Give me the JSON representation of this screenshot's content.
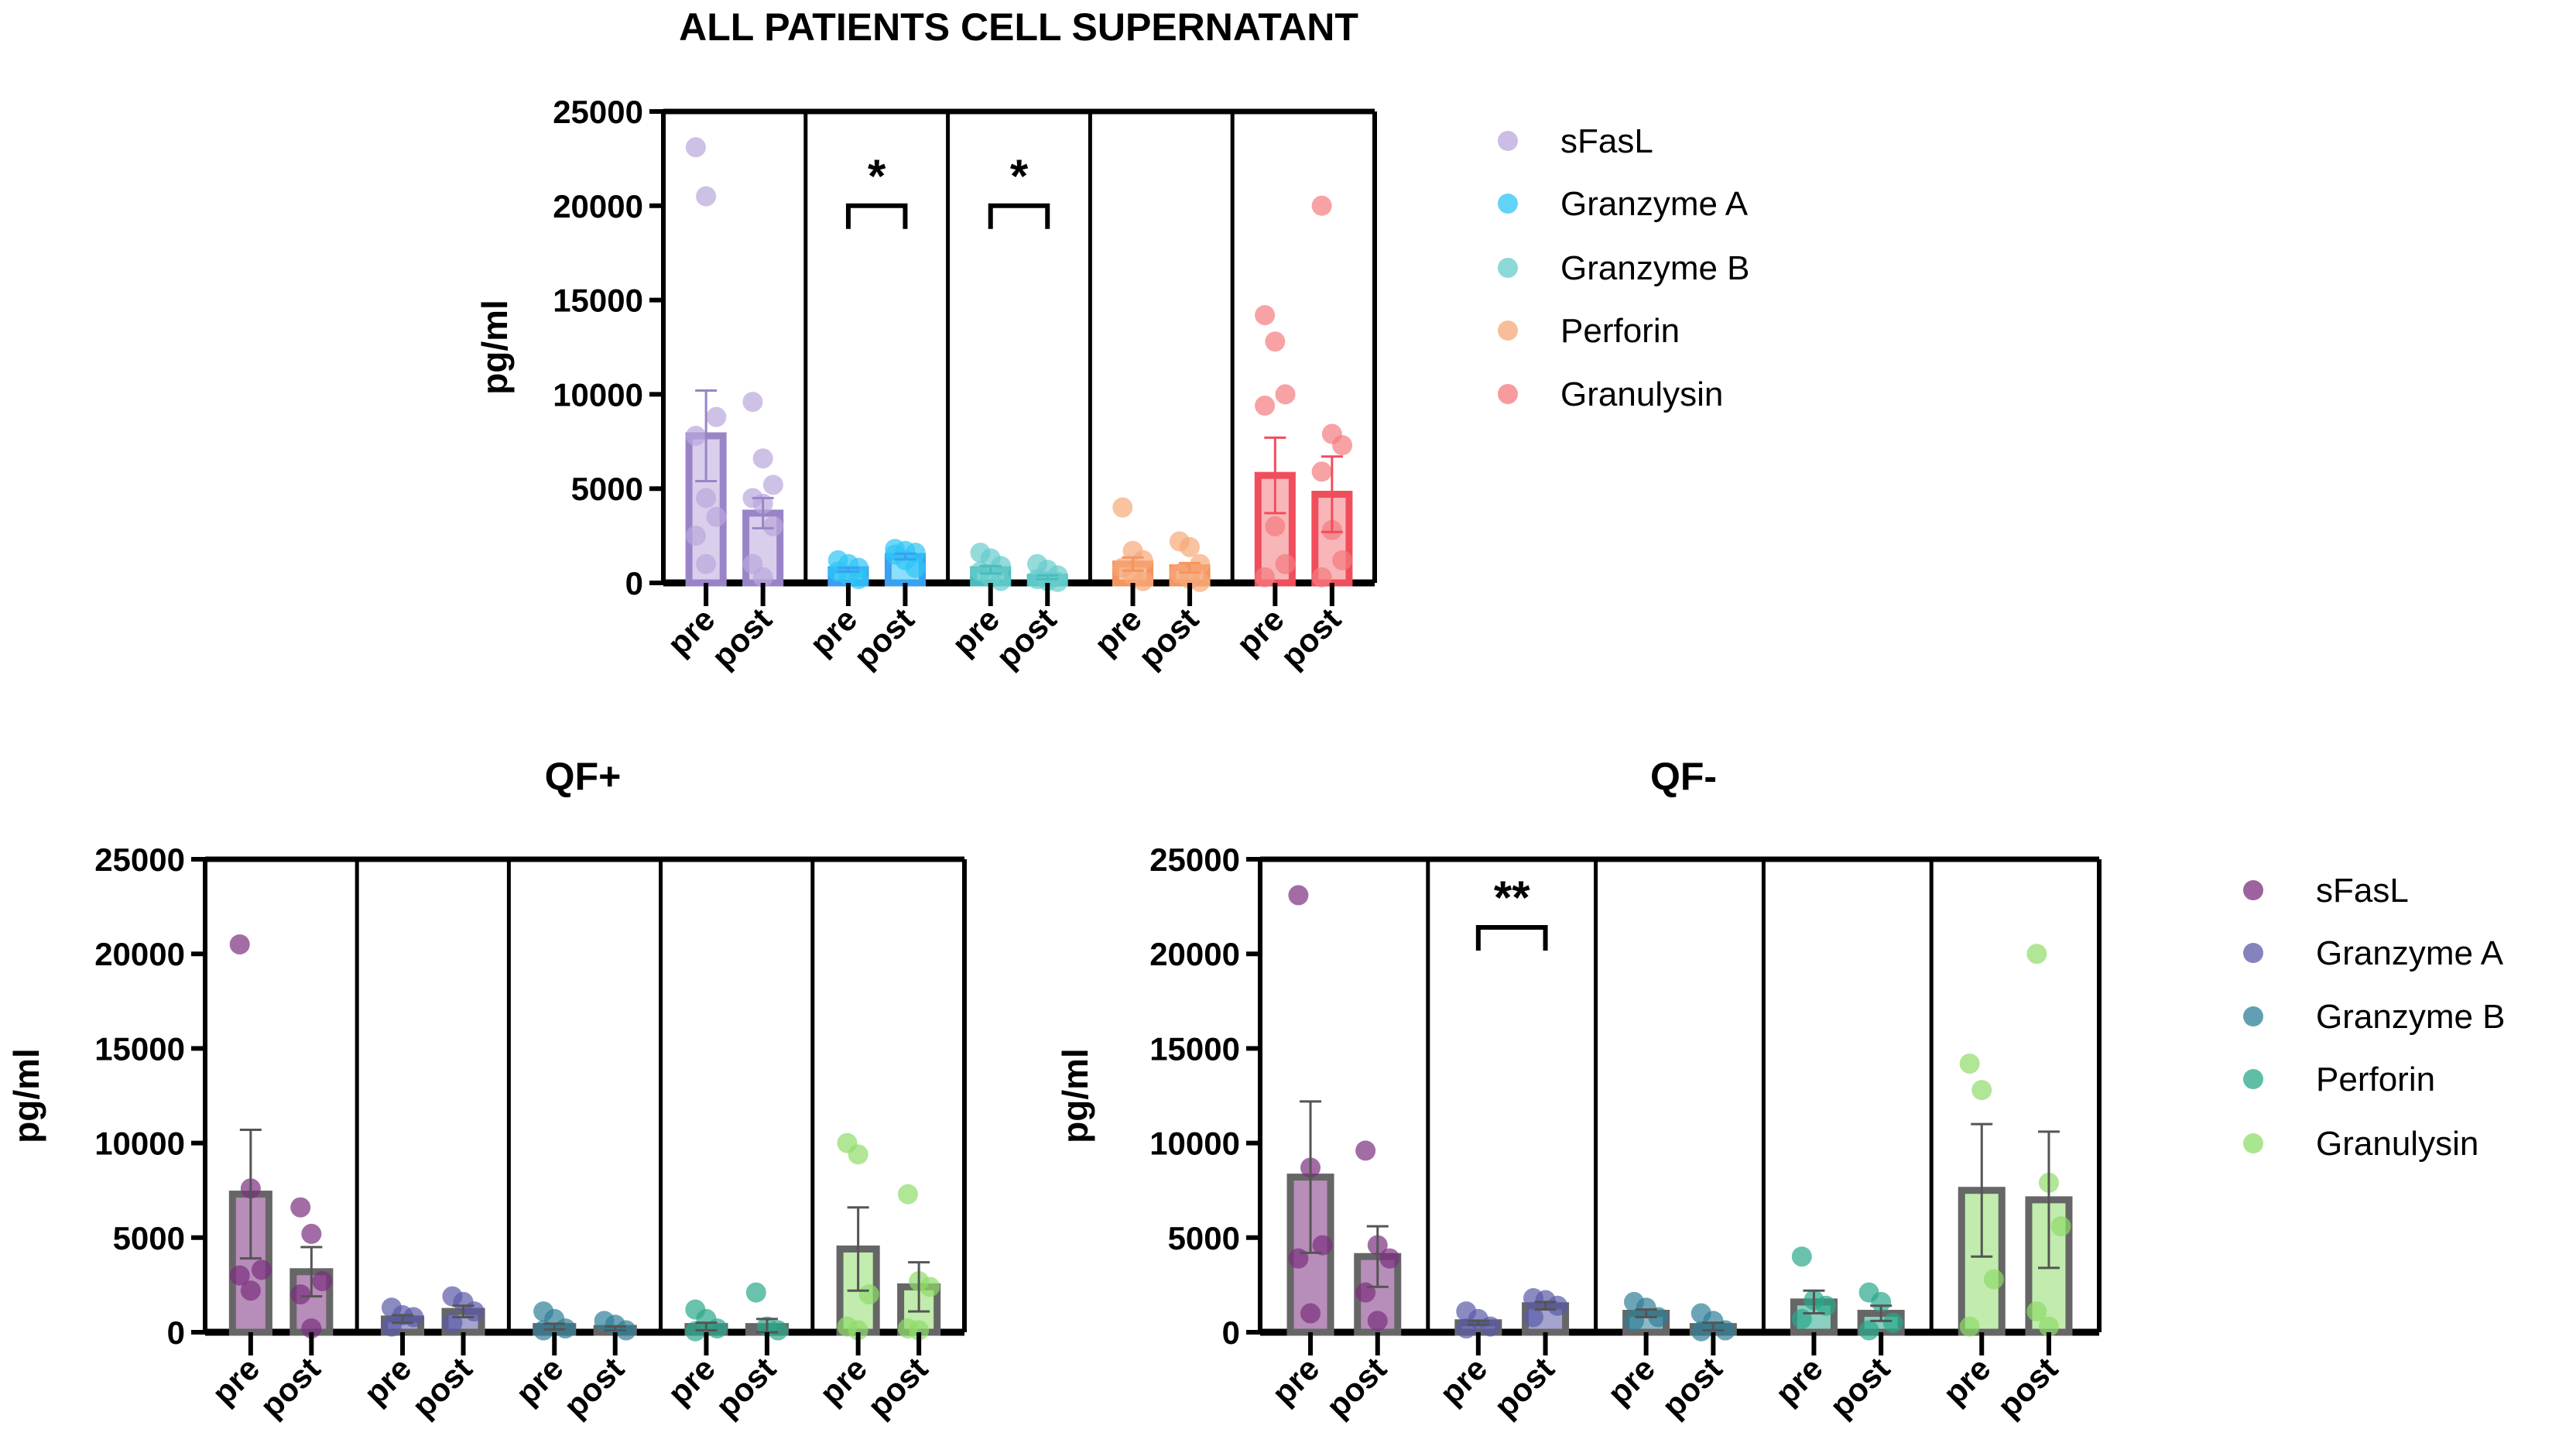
{
  "legend_top": [
    "sFasL",
    "Granzyme A",
    "Granzyme B",
    "Perforin",
    "Granulysin"
  ],
  "legend_bottom": [
    "sFasL",
    "Granzyme A",
    "Granzyme B",
    "Perforin",
    "Granulysin"
  ],
  "chart_data": [
    {
      "id": "all",
      "type": "bar",
      "title": "ALL PATIENTS CELL SUPERNATANT",
      "ylabel": "pg/ml",
      "ylim": [
        0,
        25000
      ],
      "yticks": [
        "0",
        "5000",
        "10000",
        "15000",
        "20000",
        "25000"
      ],
      "tick_labels": [
        "pre",
        "post"
      ],
      "legend": "right",
      "groups": [
        {
          "name": "sFasL",
          "color": "#b9a7dc",
          "stroke": "#9a84c8",
          "pre": {
            "mean": 7800,
            "sem": 2400,
            "points": [
              23100,
              20500,
              8800,
              7800,
              4500,
              3500,
              2500,
              1000
            ]
          },
          "post": {
            "mean": 3700,
            "sem": 800,
            "points": [
              9600,
              6600,
              5200,
              4500,
              4200,
              3000,
              1000,
              300
            ]
          }
        },
        {
          "name": "Granzyme A",
          "color": "#2ec5f5",
          "stroke": "#3aa0f0",
          "pre": {
            "mean": 700,
            "sem": 100,
            "points": [
              1200,
              1000,
              800,
              600,
              400,
              200
            ]
          },
          "post": {
            "mean": 1400,
            "sem": 150,
            "points": [
              1800,
              1700,
              1600,
              1500,
              1200,
              800
            ]
          },
          "significance": "*"
        },
        {
          "name": "Granzyme B",
          "color": "#66cccc",
          "stroke": "#4bbcbc",
          "pre": {
            "mean": 700,
            "sem": 200,
            "points": [
              1600,
              1300,
              900,
              600,
              300,
              100
            ]
          },
          "post": {
            "mean": 300,
            "sem": 100,
            "points": [
              1000,
              700,
              400,
              200,
              100,
              50
            ]
          },
          "significance": "*"
        },
        {
          "name": "Perforin",
          "color": "#f6a878",
          "stroke": "#f39560",
          "pre": {
            "mean": 1000,
            "sem": 350,
            "points": [
              4000,
              1700,
              1200,
              800,
              400,
              100
            ]
          },
          "post": {
            "mean": 800,
            "sem": 250,
            "points": [
              2200,
              1900,
              1000,
              500,
              200,
              50
            ]
          }
        },
        {
          "name": "Granulysin",
          "color": "#f47a7f",
          "stroke": "#f04e5c",
          "pre": {
            "mean": 5700,
            "sem": 2000,
            "points": [
              14200,
              12800,
              10000,
              9400,
              3000,
              1000,
              300
            ]
          },
          "post": {
            "mean": 4700,
            "sem": 2000,
            "points": [
              20000,
              7900,
              7300,
              5900,
              2800,
              1200,
              300
            ]
          }
        }
      ]
    },
    {
      "id": "qfpos",
      "type": "bar",
      "title": "QF+",
      "ylabel": "pg/ml",
      "ylim": [
        0,
        25000
      ],
      "yticks": [
        "0",
        "5000",
        "10000",
        "15000",
        "20000",
        "25000"
      ],
      "tick_labels": [
        "pre",
        "post"
      ],
      "groups": [
        {
          "name": "sFasL",
          "color": "#7b2f7f",
          "stroke": "#666666",
          "pre": {
            "mean": 7300,
            "sem": 3400,
            "points": [
              20500,
              7600,
              3300,
              3000,
              2200
            ]
          },
          "post": {
            "mean": 3200,
            "sem": 1300,
            "points": [
              6600,
              5200,
              2700,
              2000,
              200
            ]
          }
        },
        {
          "name": "Granzyme A",
          "color": "#5a5aa8",
          "stroke": "#666666",
          "pre": {
            "mean": 700,
            "sem": 200,
            "points": [
              1300,
              900,
              800,
              300
            ]
          },
          "post": {
            "mean": 1100,
            "sem": 300,
            "points": [
              1900,
              1600,
              1100,
              500
            ]
          }
        },
        {
          "name": "Granzyme B",
          "color": "#2f7f99",
          "stroke": "#666666",
          "pre": {
            "mean": 300,
            "sem": 150,
            "points": [
              1100,
              700,
              200,
              100
            ]
          },
          "post": {
            "mean": 200,
            "sem": 100,
            "points": [
              600,
              400,
              100
            ]
          }
        },
        {
          "name": "Perforin",
          "color": "#2aa88a",
          "stroke": "#666666",
          "pre": {
            "mean": 300,
            "sem": 200,
            "points": [
              1200,
              700,
              200,
              50
            ]
          },
          "post": {
            "mean": 300,
            "sem": 400,
            "points": [
              2100,
              300,
              100
            ]
          }
        },
        {
          "name": "Granulysin",
          "color": "#8edc6a",
          "stroke": "#666666",
          "pre": {
            "mean": 4400,
            "sem": 2200,
            "points": [
              10000,
              9400,
              2000,
              300,
              100
            ]
          },
          "post": {
            "mean": 2400,
            "sem": 1300,
            "points": [
              7300,
              2700,
              2400,
              200,
              100
            ]
          }
        }
      ]
    },
    {
      "id": "qfneg",
      "type": "bar",
      "title": "QF-",
      "ylabel": "pg/ml",
      "ylim": [
        0,
        25000
      ],
      "yticks": [
        "0",
        "5000",
        "10000",
        "15000",
        "20000",
        "25000"
      ],
      "tick_labels": [
        "pre",
        "post"
      ],
      "legend": "right",
      "groups": [
        {
          "name": "sFasL",
          "color": "#7b2f7f",
          "stroke": "#666666",
          "pre": {
            "mean": 8200,
            "sem": 4000,
            "points": [
              23100,
              8700,
              4600,
              3900,
              1000
            ]
          },
          "post": {
            "mean": 4000,
            "sem": 1600,
            "points": [
              9600,
              4600,
              3900,
              2100,
              600
            ]
          }
        },
        {
          "name": "Granzyme A",
          "color": "#5a5aa8",
          "stroke": "#666666",
          "pre": {
            "mean": 500,
            "sem": 100,
            "points": [
              1100,
              700,
              300,
              200
            ]
          },
          "post": {
            "mean": 1400,
            "sem": 200,
            "points": [
              1800,
              1700,
              1400,
              800
            ]
          },
          "significance": "**"
        },
        {
          "name": "Granzyme B",
          "color": "#2f7f99",
          "stroke": "#666666",
          "pre": {
            "mean": 1000,
            "sem": 200,
            "points": [
              1600,
              1300,
              800,
              600
            ]
          },
          "post": {
            "mean": 300,
            "sem": 200,
            "points": [
              1000,
              600,
              100,
              50
            ]
          }
        },
        {
          "name": "Perforin",
          "color": "#2aa88a",
          "stroke": "#666666",
          "pre": {
            "mean": 1600,
            "sem": 600,
            "points": [
              4000,
              1700,
              1400,
              700
            ]
          },
          "post": {
            "mean": 1000,
            "sem": 400,
            "points": [
              2100,
              1600,
              500,
              100
            ]
          }
        },
        {
          "name": "Granulysin",
          "color": "#8edc6a",
          "stroke": "#666666",
          "pre": {
            "mean": 7500,
            "sem": 3500,
            "points": [
              14200,
              12800,
              2800,
              300
            ]
          },
          "post": {
            "mean": 7000,
            "sem": 3600,
            "points": [
              20000,
              7900,
              5600,
              1100,
              300
            ]
          }
        }
      ]
    }
  ]
}
